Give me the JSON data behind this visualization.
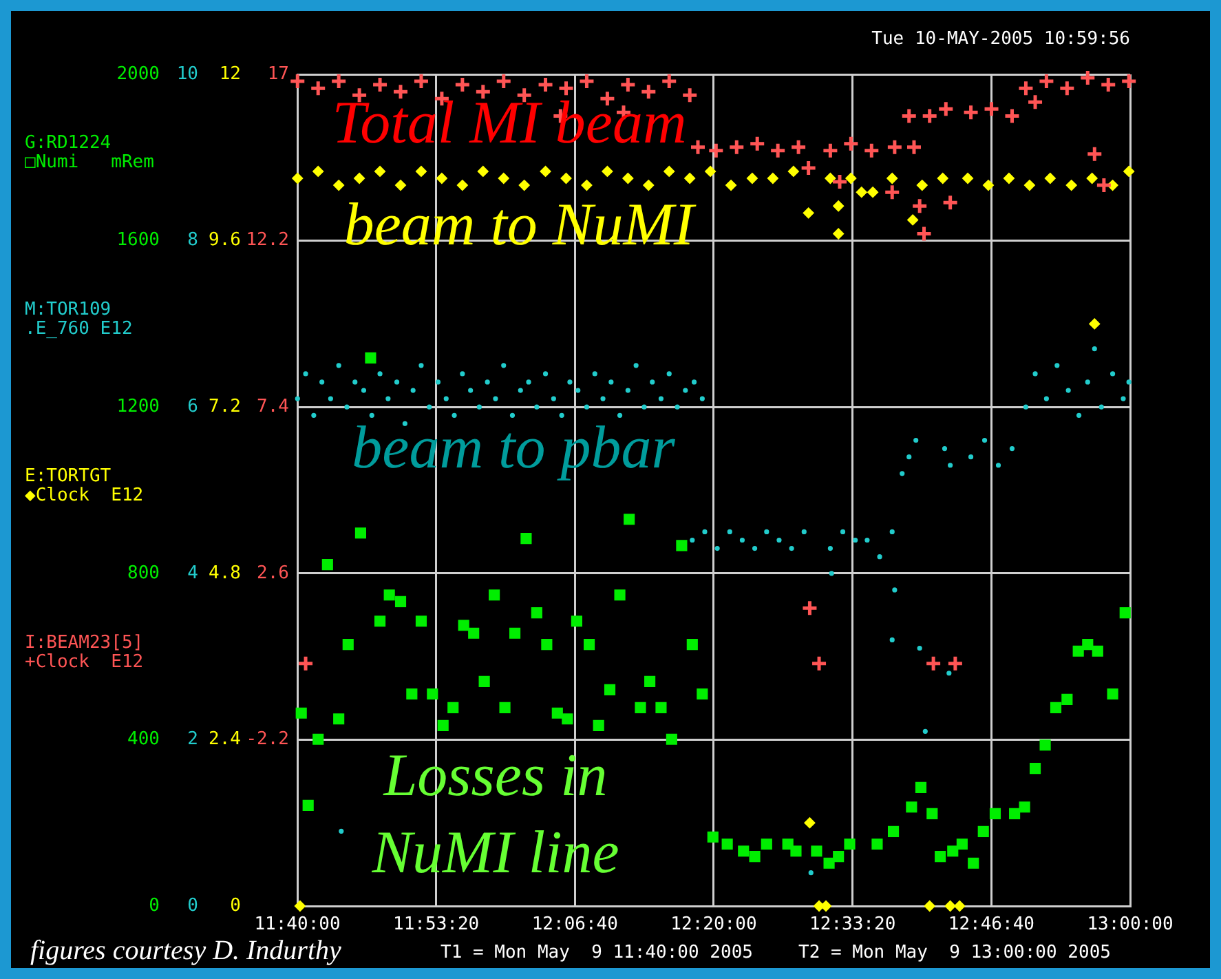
{
  "chart_data": [
    {
      "type": "scatter",
      "title": "Tue 10-MAY-2005 10:59:56",
      "legend": "left",
      "grid": true,
      "xlim": [
        11.6667,
        13
      ],
      "xticks": [
        {
          "value": 11.6667,
          "label": "11:40:00"
        },
        {
          "value": 11.8889,
          "label": "11:53:20"
        },
        {
          "value": 12.1111,
          "label": "12:06:40"
        },
        {
          "value": 12.3333,
          "label": "12:20:00"
        },
        {
          "value": 12.5556,
          "label": "12:33:20"
        },
        {
          "value": 12.7778,
          "label": "12:46:40"
        },
        {
          "value": 13,
          "label": "13:00:00"
        }
      ],
      "ylim": [
        0,
        2000
      ],
      "yticks": [
        0,
        400,
        800,
        1200,
        1600,
        2000
      ],
      "y2lim": [
        0,
        10
      ],
      "y2ticks": [
        0,
        2,
        4,
        6,
        8,
        10
      ],
      "y3lim": [
        0,
        12
      ],
      "y3ticks": [
        0,
        2.4,
        4.8,
        7.2,
        9.6,
        12
      ],
      "annotations": [
        "□Numi   mRem",
        ".E_760 E12",
        "◆Clock  E12",
        "beam to NuMI",
        "beam to pbar",
        "Losses in NuMI line",
        "figures courtesy D. Indurthy",
        "T1 = Mon May  9 11:40:00 2005",
        "T2 = Mon May  9 13:00:00 2005"
      ],
      "series": [
        {
          "name": "G:RD1224",
          "color": "#00ee00",
          "marker": "square",
          "x": [
            11.673,
            11.684,
            11.7,
            11.715,
            11.733,
            11.748,
            11.768,
            11.784,
            11.799,
            11.814,
            11.832,
            11.85,
            11.865,
            11.883,
            11.9,
            11.916,
            11.933,
            11.949,
            11.966,
            11.982,
            11.999,
            12.015,
            12.033,
            12.05,
            12.066,
            12.083,
            12.099,
            12.114,
            12.134,
            12.149,
            12.167,
            12.183,
            12.198,
            12.216,
            12.231,
            12.249,
            12.266,
            12.282,
            12.299,
            12.315,
            12.332,
            12.355,
            12.381,
            12.399,
            12.418,
            12.452,
            12.465,
            12.498,
            12.518,
            12.533,
            12.551,
            12.595,
            12.621,
            12.65,
            12.665,
            12.683,
            12.696,
            12.716,
            12.731,
            12.749,
            12.765,
            12.784,
            12.815,
            12.831,
            12.848,
            12.864,
            12.881,
            12.899,
            12.917,
            12.932,
            12.948,
            12.972,
            12.992
          ],
          "values": [
            464,
            242,
            401,
            821,
            450,
            629,
            897,
            1318,
            685,
            748,
            732,
            510,
            685,
            510,
            434,
            477,
            675,
            656,
            540,
            748,
            477,
            656,
            884,
            705,
            629,
            464,
            450,
            685,
            629,
            434,
            520,
            748,
            930,
            477,
            540,
            477,
            401,
            867,
            629,
            510,
            166,
            149,
            132,
            119,
            149,
            149,
            132,
            132,
            103,
            119,
            149,
            149,
            179,
            238,
            285,
            222,
            119,
            132,
            149,
            103,
            179,
            222,
            222,
            238,
            331,
            387,
            477,
            497,
            613,
            629,
            613,
            510,
            705
          ]
        },
        {
          "name": "M:TOR109",
          "color": "#22cccc",
          "axis": "y2",
          "marker": "circle",
          "x": [
            11.667,
            11.68,
            11.693,
            11.706,
            11.72,
            11.733,
            11.746,
            11.759,
            11.773,
            11.786,
            11.799,
            11.812,
            11.826,
            11.839,
            11.852,
            11.865,
            11.878,
            11.892,
            11.905,
            11.918,
            11.931,
            11.944,
            11.958,
            11.971,
            11.984,
            11.997,
            12.011,
            12.024,
            12.037,
            12.05,
            12.064,
            12.077,
            12.09,
            12.103,
            12.116,
            12.13,
            12.143,
            12.156,
            12.169,
            12.183,
            12.196,
            12.209,
            12.222,
            12.235,
            12.249,
            12.262,
            12.275,
            12.288,
            12.302,
            12.315,
            12.299,
            12.319,
            12.339,
            12.359,
            12.379,
            12.399,
            12.418,
            12.438,
            12.458,
            12.478,
            12.52,
            12.54,
            12.56,
            12.579,
            12.599,
            12.619,
            12.522,
            12.623,
            12.619,
            12.663,
            12.672,
            12.71,
            12.489,
            11.737,
            12.635,
            12.646,
            12.657,
            12.703,
            12.712,
            12.745,
            12.767,
            12.789,
            12.811,
            12.833,
            12.848,
            12.866,
            12.883,
            12.901,
            12.918,
            12.932,
            12.943,
            12.954,
            12.972,
            12.989,
            12.998
          ],
          "values": [
            6.1,
            6.4,
            5.9,
            6.3,
            6.1,
            6.5,
            6.0,
            6.3,
            6.2,
            5.9,
            6.4,
            6.1,
            6.3,
            5.8,
            6.2,
            6.5,
            6.0,
            6.3,
            6.1,
            5.9,
            6.4,
            6.2,
            6.0,
            6.3,
            6.1,
            6.5,
            5.9,
            6.2,
            6.3,
            6.0,
            6.4,
            6.1,
            5.9,
            6.3,
            6.2,
            6.0,
            6.4,
            6.1,
            6.3,
            5.9,
            6.2,
            6.5,
            6.0,
            6.3,
            6.1,
            6.4,
            6.0,
            6.2,
            6.3,
            6.1,
            4.4,
            4.5,
            4.3,
            4.5,
            4.4,
            4.3,
            4.5,
            4.4,
            4.3,
            4.5,
            4.3,
            4.5,
            4.4,
            4.4,
            4.2,
            4.5,
            4.0,
            3.8,
            3.2,
            3.1,
            2.1,
            2.8,
            0.4,
            0.9,
            5.2,
            5.4,
            5.6,
            5.5,
            5.3,
            5.4,
            5.6,
            5.3,
            5.5,
            6.0,
            6.4,
            6.1,
            6.5,
            6.2,
            5.9,
            6.3,
            6.7,
            6.0,
            6.4,
            6.1,
            6.3
          ]
        },
        {
          "name": "E:TORTGT",
          "color": "#ffff00",
          "axis": "y3",
          "marker": "diamond",
          "x": [
            11.667,
            11.7,
            11.733,
            11.766,
            11.799,
            11.832,
            11.865,
            11.898,
            11.931,
            11.964,
            11.997,
            12.03,
            12.064,
            12.097,
            12.13,
            12.163,
            12.196,
            12.229,
            12.262,
            12.295,
            12.328,
            12.361,
            12.395,
            12.428,
            12.461,
            12.485,
            12.52,
            12.533,
            12.533,
            12.553,
            12.57,
            12.588,
            12.619,
            12.652,
            12.667,
            12.7,
            12.74,
            12.773,
            12.806,
            12.839,
            12.872,
            12.906,
            12.939,
            12.943,
            12.972,
            12.998,
            11.671,
            12.487,
            12.502,
            12.513,
            12.679,
            12.712,
            12.727
          ],
          "values": [
            10.5,
            10.6,
            10.4,
            10.5,
            10.6,
            10.4,
            10.6,
            10.5,
            10.4,
            10.6,
            10.5,
            10.4,
            10.6,
            10.5,
            10.4,
            10.6,
            10.5,
            10.4,
            10.6,
            10.5,
            10.6,
            10.4,
            10.5,
            10.5,
            10.6,
            10.0,
            10.5,
            10.1,
            9.7,
            10.5,
            10.3,
            10.3,
            10.5,
            9.9,
            10.4,
            10.5,
            10.5,
            10.4,
            10.5,
            10.4,
            10.5,
            10.4,
            10.5,
            8.4,
            10.4,
            10.6,
            0,
            1.2,
            0,
            0,
            0,
            0,
            0
          ]
        }
      ]
    },
    {
      "type": "scatter",
      "legend": "left",
      "tick_labels": "y",
      "xlim": [
        11.6667,
        13
      ],
      "ylim": [
        -7,
        17
      ],
      "yticks": [
        -2.2,
        2.6,
        7.4,
        12.2,
        17
      ],
      "annotations": [
        "+Clock  E12",
        "Total MI beam"
      ],
      "series": [
        {
          "name": "I:BEAM23[5]",
          "color": "#ff5555",
          "marker": "cross",
          "x": [
            11.667,
            11.7,
            11.733,
            11.766,
            11.799,
            11.832,
            11.865,
            11.898,
            11.931,
            11.964,
            11.997,
            12.03,
            12.064,
            12.088,
            12.097,
            12.13,
            12.163,
            12.189,
            12.196,
            12.229,
            12.262,
            12.295,
            12.308,
            12.337,
            12.37,
            12.403,
            12.436,
            12.469,
            12.485,
            12.52,
            12.535,
            12.553,
            12.586,
            12.619,
            12.623,
            12.646,
            12.654,
            12.663,
            12.67,
            12.679,
            12.705,
            12.712,
            12.745,
            12.778,
            12.811,
            12.833,
            12.848,
            12.866,
            12.899,
            12.932,
            12.943,
            12.958,
            12.965,
            12.998,
            11.68,
            12.487,
            12.502,
            12.685,
            12.72
          ],
          "values": [
            16.8,
            16.6,
            16.8,
            16.4,
            16.7,
            16.5,
            16.8,
            16.3,
            16.7,
            16.5,
            16.8,
            16.4,
            16.7,
            15.8,
            16.6,
            16.8,
            16.3,
            15.9,
            16.7,
            16.5,
            16.8,
            16.4,
            14.9,
            14.8,
            14.9,
            15.0,
            14.8,
            14.9,
            14.3,
            14.8,
            13.9,
            15.0,
            14.8,
            13.6,
            14.9,
            15.8,
            14.9,
            13.2,
            12.4,
            15.8,
            16.0,
            13.3,
            15.9,
            16.0,
            15.8,
            16.6,
            16.2,
            16.8,
            16.6,
            16.9,
            14.7,
            13.8,
            16.7,
            16.8,
            0,
            1.6,
            0,
            0,
            0
          ]
        }
      ]
    }
  ]
}
